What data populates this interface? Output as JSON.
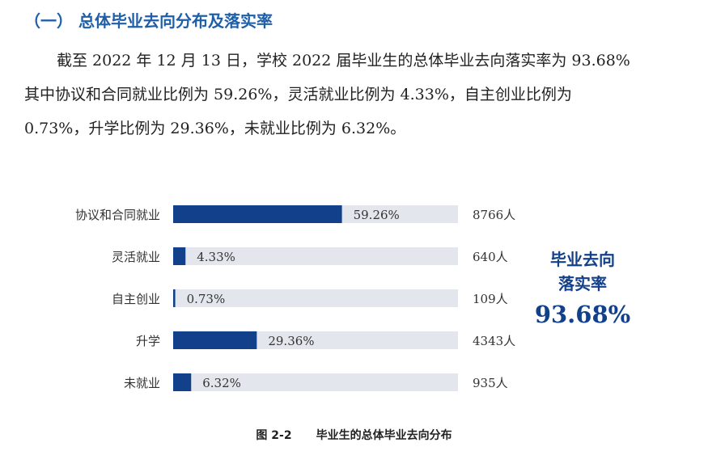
{
  "section": {
    "heading": "（一） 总体毕业去向分布及落实率"
  },
  "paragraph": [
    "截至 2022 年 12 月 13 日，学校 2022 届毕业生的总体毕业去向落实率为 93.68%",
    "其中协议和合同就业比例为 59.26%，灵活就业比例为 4.33%，自主创业比例为",
    "0.73%，升学比例为 29.36%，未就业比例为 6.32%。"
  ],
  "callout": {
    "line1": "毕业去向",
    "line2": "落实率",
    "value": "93.68%"
  },
  "caption": {
    "figure": "图 2-2",
    "title": "毕业生的总体毕业去向分布"
  },
  "colors": {
    "bar": "#12408a",
    "track": "#e3e6ed",
    "heading": "#1f5fa8"
  },
  "chart_data": {
    "type": "bar",
    "orientation": "horizontal",
    "categories": [
      "协议和合同就业",
      "灵活就业",
      "自主创业",
      "升学",
      "未就业"
    ],
    "values": [
      59.26,
      4.33,
      0.73,
      29.36,
      6.32
    ],
    "value_labels": [
      "59.26%",
      "4.33%",
      "0.73%",
      "29.36%",
      "6.32%"
    ],
    "counts": [
      "8766人",
      "640人",
      "109人",
      "4343人",
      "935人"
    ],
    "xlim": [
      0,
      100
    ],
    "grid": false
  }
}
